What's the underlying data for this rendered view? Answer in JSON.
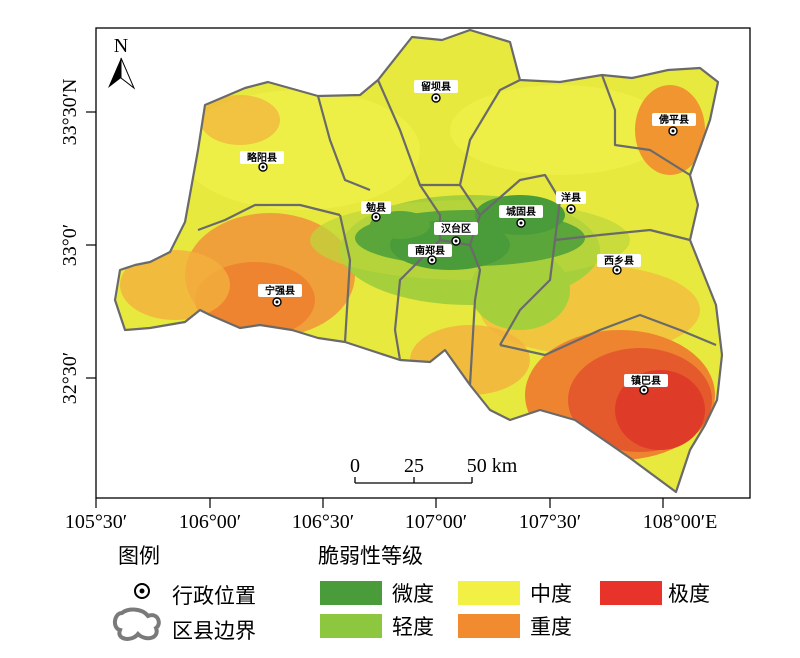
{
  "map": {
    "north_label": "N",
    "lat_labels": [
      {
        "id": "lat-1",
        "text": "33°30′N"
      },
      {
        "id": "lat-2",
        "text": "33°0′"
      },
      {
        "id": "lat-3",
        "text": "32°30′"
      }
    ],
    "lon_labels": [
      {
        "id": "lon-1",
        "text": "105°30′"
      },
      {
        "id": "lon-2",
        "text": "106°00′"
      },
      {
        "id": "lon-3",
        "text": "106°30′"
      },
      {
        "id": "lon-4",
        "text": "107°00′"
      },
      {
        "id": "lon-5",
        "text": "107°30′"
      },
      {
        "id": "lon-6",
        "text": "108°00′E"
      }
    ],
    "scale_bar": {
      "labels": [
        "0",
        "25",
        "50 km"
      ]
    },
    "counties": [
      {
        "id": "liuba",
        "name": "留坝县"
      },
      {
        "id": "foping",
        "name": "佛平县"
      },
      {
        "id": "lueyang",
        "name": "略阳县"
      },
      {
        "id": "yangxian",
        "name": "洋县"
      },
      {
        "id": "mianxian",
        "name": "勉县"
      },
      {
        "id": "chenggu",
        "name": "城固县"
      },
      {
        "id": "hantai",
        "name": "汉台区"
      },
      {
        "id": "nanzheng",
        "name": "南郑县"
      },
      {
        "id": "xixiang",
        "name": "西乡县"
      },
      {
        "id": "ningqiang",
        "name": "宁强县"
      },
      {
        "id": "zhenba",
        "name": "镇巴县"
      }
    ]
  },
  "legend": {
    "title": "图例",
    "vuln_title": "脆弱性等级",
    "admin_location": "行政位置",
    "county_boundary": "区县边界",
    "levels": [
      {
        "label": "微度",
        "color": "#4a9b3a"
      },
      {
        "label": "轻度",
        "color": "#8dc63f"
      },
      {
        "label": "中度",
        "color": "#f2ef45"
      },
      {
        "label": "重度",
        "color": "#f28a30"
      },
      {
        "label": "极度",
        "color": "#e8332a"
      }
    ]
  },
  "colors": {
    "micro": "#4a9b3a",
    "light": "#8dc63f",
    "moderate": "#f2ef45",
    "heavy": "#f28a30",
    "extreme": "#e8332a",
    "boundary": "#6a6a6a"
  }
}
